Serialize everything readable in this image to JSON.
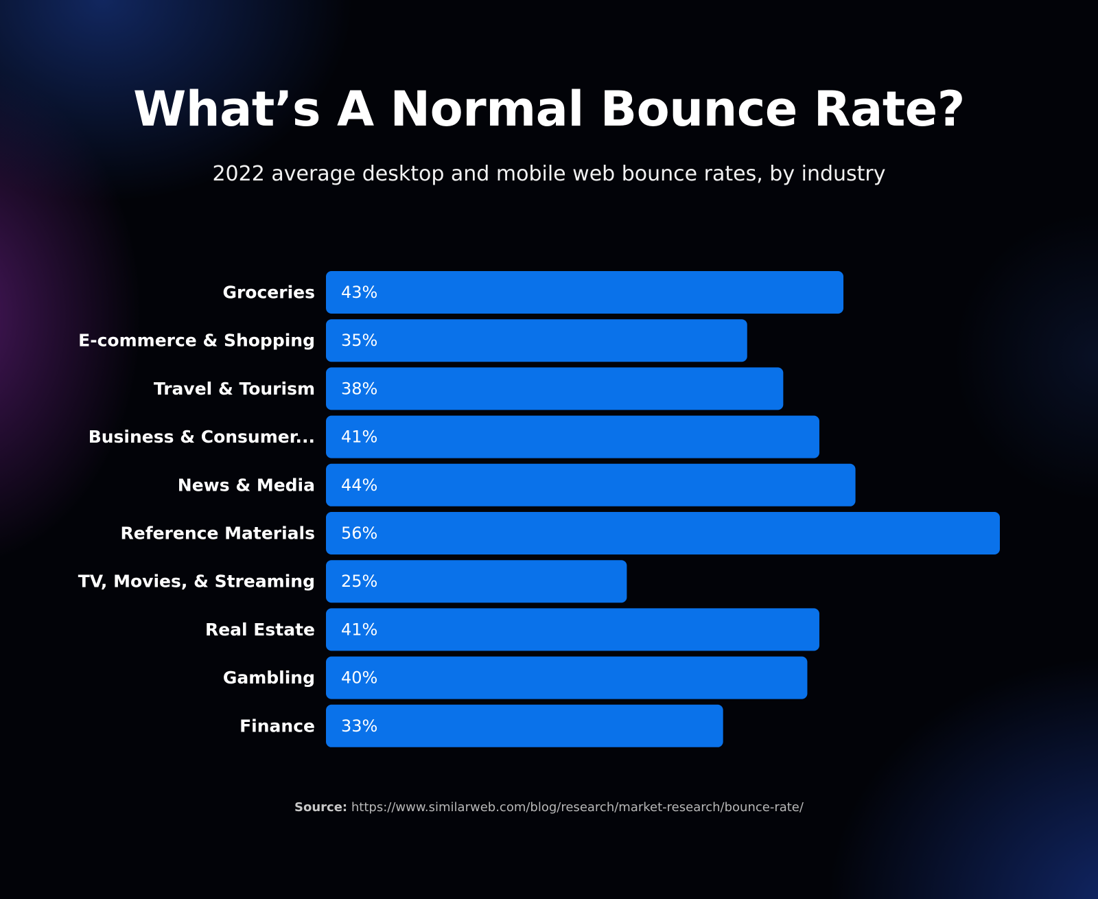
{
  "header": {
    "title": "What’s A Normal Bounce Rate?",
    "subtitle": "2022 average desktop and mobile web bounce rates, by industry"
  },
  "footer": {
    "source_label": "Source:",
    "source_url": "https://www.similarweb.com/blog/research/market-research/bounce-rate/"
  },
  "colors": {
    "bar": "#0a72ea",
    "background": "#020308",
    "text": "#ffffff"
  },
  "chart_data": {
    "type": "bar",
    "orientation": "horizontal",
    "title": "What’s A Normal Bounce Rate?",
    "subtitle": "2022 average desktop and mobile web bounce rates, by industry",
    "categories": [
      "Groceries",
      "E-commerce & Shopping",
      "Travel & Tourism",
      "Business & Consumer...",
      "News & Media",
      "Reference Materials",
      "TV, Movies, & Streaming",
      "Real Estate",
      "Gambling",
      "Finance"
    ],
    "values": [
      43,
      35,
      38,
      41,
      44,
      56,
      25,
      41,
      40,
      33
    ],
    "value_labels": [
      "43%",
      "35%",
      "38%",
      "41%",
      "44%",
      "56%",
      "25%",
      "41%",
      "40%",
      "33%"
    ],
    "unit": "%",
    "xlim": [
      0,
      56
    ],
    "grid": false,
    "legend": "none"
  }
}
